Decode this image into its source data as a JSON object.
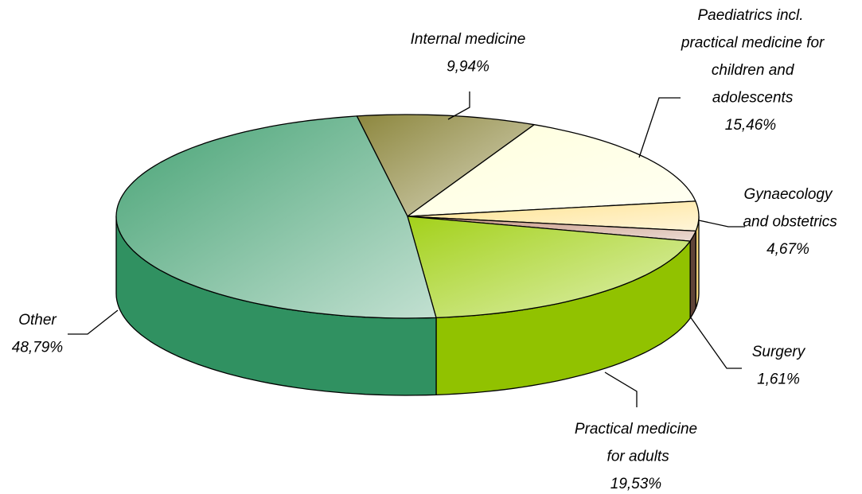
{
  "chart_data": {
    "type": "pie",
    "categories": [
      "Internal medicine",
      "Paediatrics incl. practical medicine for children and adolescents",
      "Gynaecology and obstetrics",
      "Surgery",
      "Practical medicine for adults",
      "Other"
    ],
    "values": [
      9.94,
      15.46,
      4.67,
      1.61,
      19.53,
      48.79
    ],
    "value_labels": [
      "9,94%",
      "15,46%",
      "4,67%",
      "1,61%",
      "19,53%",
      "48,79%"
    ],
    "colors": [
      "#807a28",
      "#ffffd8",
      "#ffdf80",
      "#c08870",
      "#99cc00",
      "#339966"
    ]
  }
}
